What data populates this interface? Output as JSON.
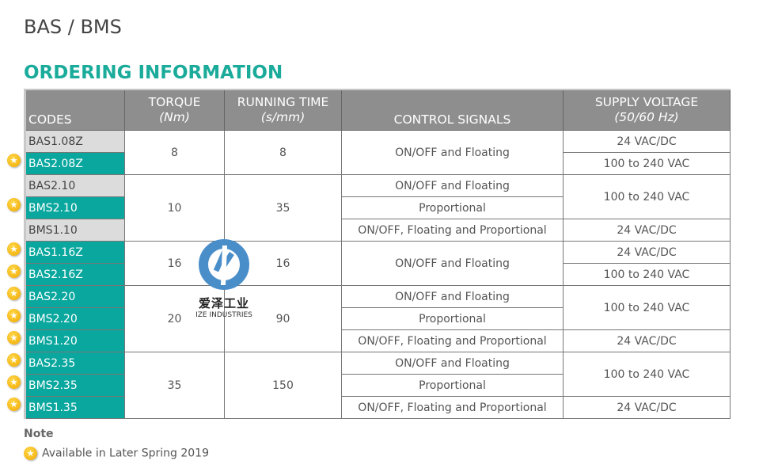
{
  "title": "BAS / BMS",
  "subtitle": "ORDERING INFORMATION",
  "headers": {
    "codes": "CODES",
    "torque": "TORQUE",
    "torque_unit": "(Nm)",
    "running": "RUNNING TIME",
    "running_unit": "(s/mm)",
    "control": "CONTROL SIGNALS",
    "supply": "SUPPLY VOLTAGE",
    "supply_unit": "(50/60 Hz)"
  },
  "codes": [
    {
      "code": "BAS1.08Z",
      "star": false
    },
    {
      "code": "BAS2.08Z",
      "star": true
    },
    {
      "code": "BAS2.10",
      "star": false
    },
    {
      "code": "BMS2.10",
      "star": true
    },
    {
      "code": "BMS1.10",
      "star": false
    },
    {
      "code": "BAS1.16Z",
      "star": true
    },
    {
      "code": "BAS2.16Z",
      "star": true
    },
    {
      "code": "BAS2.20",
      "star": true
    },
    {
      "code": "BMS2.20",
      "star": true
    },
    {
      "code": "BMS1.20",
      "star": true
    },
    {
      "code": "BAS2.35",
      "star": true
    },
    {
      "code": "BMS2.35",
      "star": true
    },
    {
      "code": "BMS1.35",
      "star": true
    }
  ],
  "torque": [
    {
      "v": "8",
      "span": 2
    },
    {
      "v": "10",
      "span": 3
    },
    {
      "v": "16",
      "span": 2
    },
    {
      "v": "20",
      "span": 3
    },
    {
      "v": "35",
      "span": 3
    }
  ],
  "running": [
    {
      "v": "8",
      "span": 2
    },
    {
      "v": "35",
      "span": 3
    },
    {
      "v": "16",
      "span": 2
    },
    {
      "v": "90",
      "span": 3
    },
    {
      "v": "150",
      "span": 3
    }
  ],
  "control": [
    {
      "v": "ON/OFF and Floating",
      "span": 2
    },
    {
      "v": "ON/OFF and Floating",
      "span": 1
    },
    {
      "v": "Proportional",
      "span": 1
    },
    {
      "v": "ON/OFF, Floating and Proportional",
      "span": 1
    },
    {
      "v": "ON/OFF and Floating",
      "span": 2
    },
    {
      "v": "ON/OFF and Floating",
      "span": 1
    },
    {
      "v": "Proportional",
      "span": 1
    },
    {
      "v": "ON/OFF, Floating and Proportional",
      "span": 1
    },
    {
      "v": "ON/OFF and Floating",
      "span": 1
    },
    {
      "v": "Proportional",
      "span": 1
    },
    {
      "v": "ON/OFF, Floating and Proportional",
      "span": 1
    }
  ],
  "supply": [
    {
      "v": "24 VAC/DC",
      "span": 1
    },
    {
      "v": "100 to 240 VAC",
      "span": 1
    },
    {
      "v": "100 to 240 VAC",
      "span": 2
    },
    {
      "v": "24 VAC/DC",
      "span": 1
    },
    {
      "v": "24 VAC/DC",
      "span": 1
    },
    {
      "v": "100 to 240 VAC",
      "span": 1
    },
    {
      "v": "100 to 240 VAC",
      "span": 2
    },
    {
      "v": "24 VAC/DC",
      "span": 1
    },
    {
      "v": "100 to 240 VAC",
      "span": 2
    },
    {
      "v": "24 VAC/DC",
      "span": 1
    }
  ],
  "note_label": "Note",
  "legend_text": "Available in Later Spring 2019",
  "star_glyph": "★",
  "watermark": {
    "cn": "爱泽工业",
    "en": "IZE INDUSTRIES"
  },
  "colors": {
    "accent": "#1aab9a",
    "code_star": "#0aa79e",
    "code_plain": "#dcdcdc",
    "header": "#8e8e8e",
    "star": "#f0a800"
  }
}
